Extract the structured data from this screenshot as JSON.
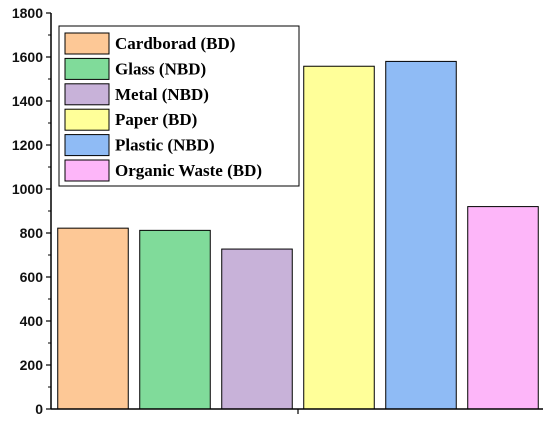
{
  "chart_data": {
    "type": "bar",
    "categories": [
      "Cardborad (BD)",
      "Glass (NBD)",
      "Metal (NBD)",
      "Paper (BD)",
      "Plastic (NBD)",
      "Organic Waste (BD)"
    ],
    "values": [
      822,
      812,
      727,
      1558,
      1580,
      920
    ],
    "colors": [
      "#fdc896",
      "#80db9a",
      "#c8b2d9",
      "#ffff99",
      "#8fbbf5",
      "#fdb6f9"
    ],
    "ylim": [
      0,
      1800
    ],
    "yticks": [
      "0",
      "200",
      "400",
      "600",
      "800",
      "1000",
      "1200",
      "1400",
      "1600",
      "1800"
    ],
    "title": "",
    "xlabel": "",
    "ylabel": "",
    "grid": false,
    "legend": {
      "position": "top-left",
      "entries": [
        "Cardborad (BD)",
        "Glass (NBD)",
        "Metal (NBD)",
        "Paper (BD)",
        "Plastic (NBD)",
        "Organic Waste (BD)"
      ]
    }
  }
}
